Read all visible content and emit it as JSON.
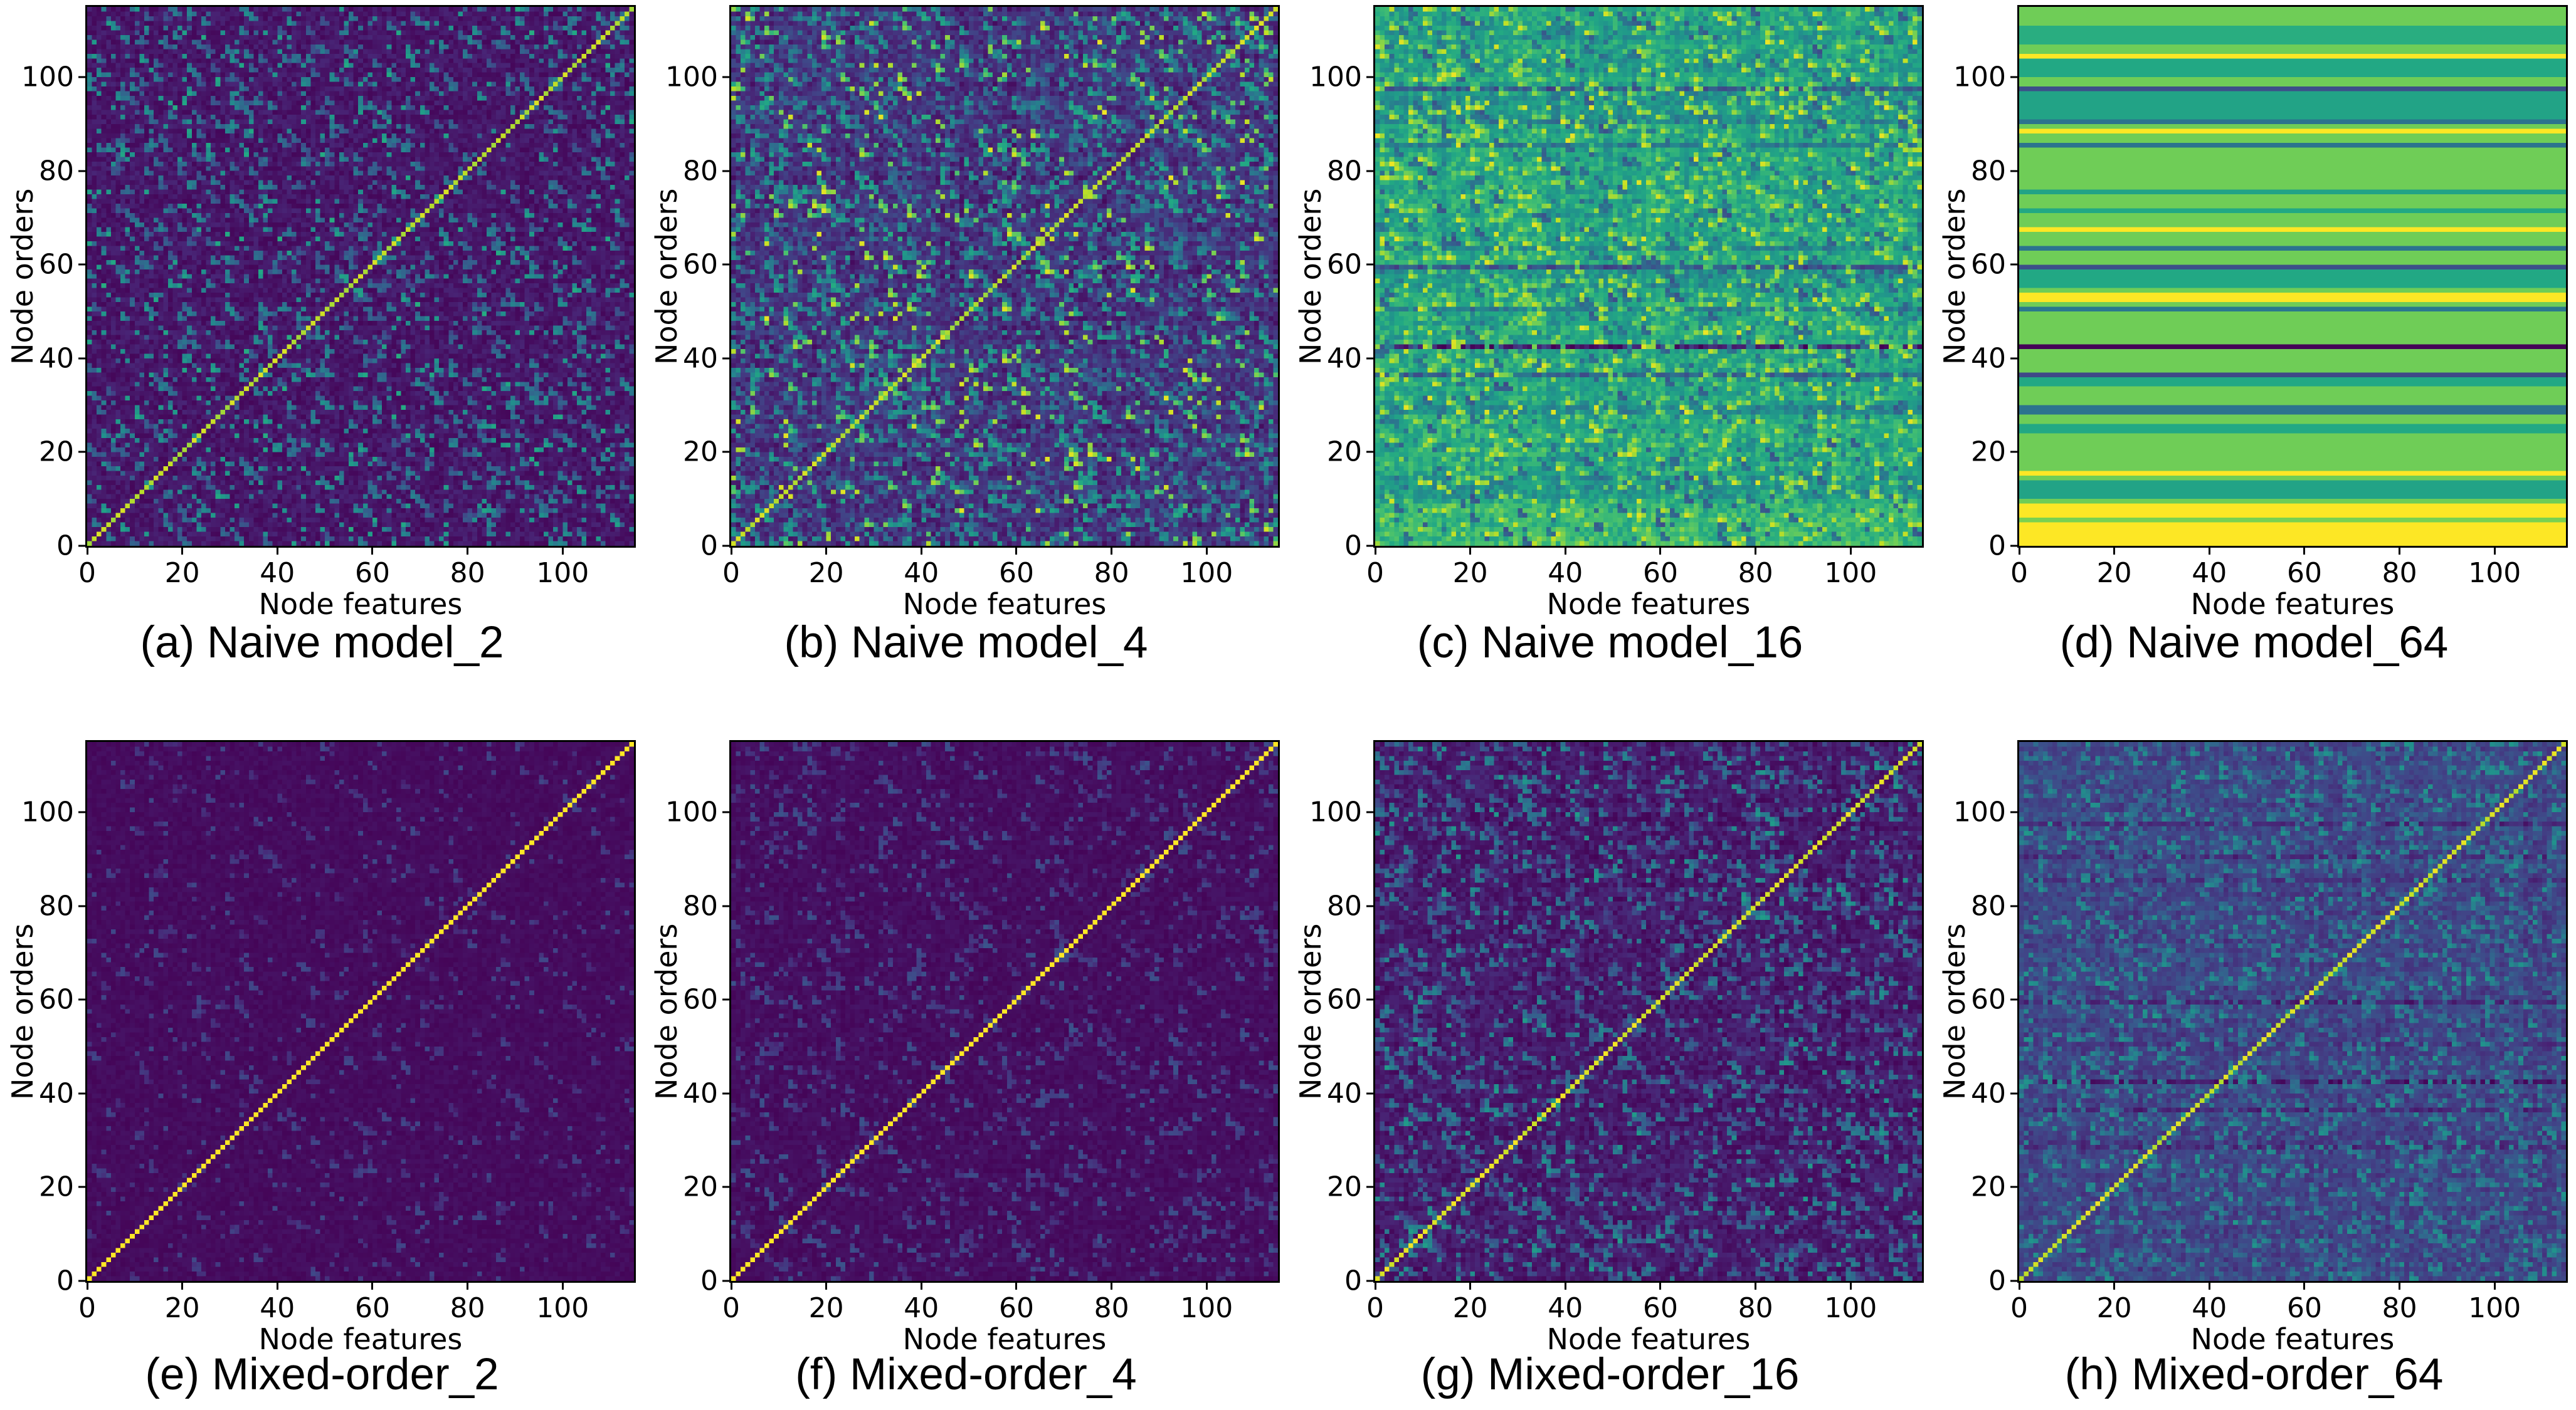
{
  "figure": {
    "background": "#ffffff",
    "text_color": "#000000",
    "xlabel": "Node features",
    "ylabel": "Node orders",
    "x_ticks": [
      0,
      20,
      40,
      60,
      80,
      100
    ],
    "y_ticks": [
      0,
      20,
      40,
      60,
      80,
      100
    ],
    "axis_max": 115,
    "colormap": "viridis",
    "colormap_stops": [
      [
        0.0,
        "#440154"
      ],
      [
        0.1,
        "#482475"
      ],
      [
        0.2,
        "#414487"
      ],
      [
        0.3,
        "#355f8d"
      ],
      [
        0.4,
        "#2a788e"
      ],
      [
        0.5,
        "#21918c"
      ],
      [
        0.6,
        "#22a884"
      ],
      [
        0.7,
        "#44bf70"
      ],
      [
        0.8,
        "#7ad151"
      ],
      [
        0.9,
        "#bddf26"
      ],
      [
        1.0,
        "#fde725"
      ]
    ]
  },
  "chart_data": {
    "type": "heatmap",
    "layout": "2 rows x 4 columns",
    "matrix_size": 115,
    "x_range": [
      0,
      115
    ],
    "y_range": [
      0,
      115
    ],
    "xlabel": "Node features",
    "ylabel": "Node orders",
    "x_ticks": [
      0,
      20,
      40,
      60,
      80,
      100
    ],
    "y_ticks": [
      0,
      20,
      40,
      60,
      80,
      100
    ],
    "colormap": "viridis",
    "panels": [
      {
        "id": "a",
        "caption": "(a) Naive model_2",
        "row": 1,
        "col": 1,
        "description": "Dark purple background with sparse teal speckles and a bright yellow-green main diagonal from bottom-left to top-right.",
        "render": {
          "seed": 101,
          "base": 0.06,
          "base_var": 0.045,
          "row_var": 0.0,
          "col_var": 0.0,
          "symmetric": true,
          "diag": 0.9,
          "diag_var": 0.05,
          "speckles": [
            {
              "prob": 0.1,
              "min": 0.25,
              "max": 0.5,
              "blob": 0.45
            },
            {
              "prob": 0.03,
              "min": 0.48,
              "max": 0.62,
              "blob": 0.2
            }
          ]
        }
      },
      {
        "id": "b",
        "caption": "(b) Naive model_4",
        "row": 1,
        "col": 2,
        "description": "Noisier purple-blue background with many green/teal speckles, occasional yellow cells, and a yellow-green main diagonal.",
        "render": {
          "seed": 202,
          "base": 0.14,
          "base_var": 0.08,
          "row_var": 0.02,
          "col_var": 0.02,
          "symmetric": true,
          "diag": 0.9,
          "diag_var": 0.06,
          "speckles": [
            {
              "prob": 0.15,
              "min": 0.3,
              "max": 0.62,
              "blob": 0.5
            },
            {
              "prob": 0.045,
              "min": 0.7,
              "max": 0.97,
              "blob": 0.3
            }
          ]
        }
      },
      {
        "id": "c",
        "caption": "(c) Naive model_16",
        "row": 1,
        "col": 3,
        "description": "Mostly teal-green field with yellow hot spots, vertical streaks and dark blue/navy horizontal bands (darkest row near 42); no visible diagonal.",
        "render": {
          "seed": 303,
          "base": 0.58,
          "base_var": 0.09,
          "row_var": 0.03,
          "col_var": 0.05,
          "symmetric": false,
          "diag": null,
          "diag_var": 0,
          "row_bands": [
            [
              0,
              8,
              0.66
            ],
            [
              10,
              14,
              0.52
            ],
            [
              28,
              29,
              0.45
            ],
            [
              36,
              36,
              0.3
            ],
            [
              42,
              42,
              0.08
            ],
            [
              50,
              50,
              0.42
            ],
            [
              55,
              58,
              0.52
            ],
            [
              59,
              59,
              0.28
            ],
            [
              63,
              63,
              0.45
            ],
            [
              85,
              85,
              0.4
            ],
            [
              90,
              90,
              0.4
            ],
            [
              91,
              96,
              0.5
            ],
            [
              97,
              97,
              0.3
            ],
            [
              100,
              103,
              0.55
            ],
            [
              107,
              110,
              0.55
            ]
          ],
          "speckles": [
            {
              "prob": 0.1,
              "min": 0.76,
              "max": 0.95,
              "blob": 0.6
            },
            {
              "prob": 0.07,
              "min": 0.3,
              "max": 0.45,
              "blob": 0.3
            }
          ]
        }
      },
      {
        "id": "d",
        "caption": "(d) Naive model_64",
        "row": 1,
        "col": 4,
        "description": "Purely horizontal constant-value stripes: light green ground with yellow bands (bottom rows 0-8, 15, 52-53, 67, 88, 104), teal bands, dark blue bands (28-29, 50, 63, 85, 90), navy bands (36, 59, 97) and one near-black purple band at row 42.",
        "render": {
          "seed": 404,
          "base": 0.78,
          "base_var": 0.0,
          "row_var": 0.0,
          "col_var": 0.0,
          "symmetric": false,
          "flat_rows": true,
          "diag": null,
          "diag_var": 0,
          "row_bands": [
            [
              0,
              4,
              1.0
            ],
            [
              5,
              5,
              0.8
            ],
            [
              6,
              8,
              1.0
            ],
            [
              10,
              13,
              0.58
            ],
            [
              15,
              15,
              1.0
            ],
            [
              24,
              25,
              0.6
            ],
            [
              28,
              29,
              0.38
            ],
            [
              34,
              35,
              0.6
            ],
            [
              36,
              36,
              0.22
            ],
            [
              42,
              42,
              0.01
            ],
            [
              50,
              50,
              0.4
            ],
            [
              52,
              53,
              1.0
            ],
            [
              55,
              58,
              0.6
            ],
            [
              59,
              59,
              0.24
            ],
            [
              63,
              63,
              0.38
            ],
            [
              67,
              67,
              1.0
            ],
            [
              71,
              71,
              0.6
            ],
            [
              75,
              75,
              0.58
            ],
            [
              85,
              85,
              0.38
            ],
            [
              88,
              88,
              1.0
            ],
            [
              90,
              90,
              0.38
            ],
            [
              91,
              96,
              0.58
            ],
            [
              97,
              97,
              0.24
            ],
            [
              100,
              103,
              0.6
            ],
            [
              104,
              104,
              1.0
            ],
            [
              107,
              110,
              0.62
            ]
          ],
          "speckles": []
        }
      },
      {
        "id": "e",
        "caption": "(e) Mixed-order_2",
        "row": 2,
        "col": 1,
        "description": "Very dark uniform purple background, extremely sparse faint blue speckles, crisp bright yellow identity diagonal.",
        "render": {
          "seed": 505,
          "base": 0.03,
          "base_var": 0.02,
          "row_var": 0.0,
          "col_var": 0.0,
          "symmetric": true,
          "diag": 1.0,
          "diag_var": 0.0,
          "speckles": [
            {
              "prob": 0.055,
              "min": 0.12,
              "max": 0.22,
              "blob": 0.3
            }
          ]
        }
      },
      {
        "id": "f",
        "caption": "(f) Mixed-order_4",
        "row": 2,
        "col": 2,
        "description": "Dark purple background with slightly more faint blue speckles than (e) and a crisp bright yellow diagonal.",
        "render": {
          "seed": 606,
          "base": 0.035,
          "base_var": 0.025,
          "row_var": 0.0,
          "col_var": 0.0,
          "symmetric": true,
          "diag": 1.0,
          "diag_var": 0.0,
          "speckles": [
            {
              "prob": 0.085,
              "min": 0.13,
              "max": 0.26,
              "blob": 0.35
            }
          ]
        }
      },
      {
        "id": "g",
        "caption": "(g) Mixed-order_16",
        "row": 2,
        "col": 3,
        "description": "Dark purple background with denser teal speckles and blocky texture; bright yellow-green diagonal.",
        "render": {
          "seed": 707,
          "base": 0.07,
          "base_var": 0.05,
          "row_var": 0.01,
          "col_var": 0.01,
          "symmetric": true,
          "diag": 0.95,
          "diag_var": 0.04,
          "speckles": [
            {
              "prob": 0.13,
              "min": 0.2,
              "max": 0.45,
              "blob": 0.45
            },
            {
              "prob": 0.02,
              "min": 0.45,
              "max": 0.55,
              "blob": 0.2
            }
          ]
        }
      },
      {
        "id": "h",
        "caption": "(h) Mixed-order_64",
        "row": 2,
        "col": 4,
        "description": "Slate blue-purple background with teal speckles, faint dark horizontal bands (rows ~28, 36, 42, 50, 59, 85, 90, 97) and a yellow-green diagonal.",
        "render": {
          "seed": 808,
          "base": 0.2,
          "base_var": 0.05,
          "row_var": 0.02,
          "col_var": 0.03,
          "symmetric": false,
          "diag": 0.93,
          "diag_var": 0.05,
          "row_bands": [
            [
              28,
              29,
              0.14
            ],
            [
              36,
              36,
              0.12
            ],
            [
              42,
              42,
              0.06
            ],
            [
              50,
              50,
              0.15
            ],
            [
              59,
              59,
              0.12
            ],
            [
              85,
              85,
              0.14
            ],
            [
              90,
              90,
              0.14
            ],
            [
              97,
              97,
              0.12
            ]
          ],
          "speckles": [
            {
              "prob": 0.13,
              "min": 0.35,
              "max": 0.52,
              "blob": 0.4
            },
            {
              "prob": 0.1,
              "min": 0.26,
              "max": 0.34,
              "blob": 0.2
            }
          ]
        }
      }
    ]
  }
}
